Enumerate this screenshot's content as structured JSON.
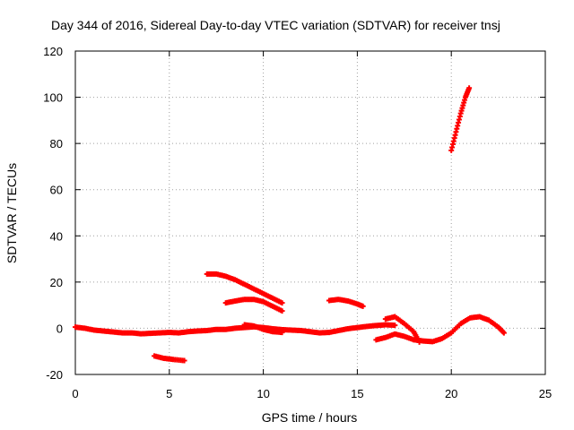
{
  "chart_data": {
    "type": "scatter",
    "title": "Day 344 of 2016, Sidereal Day-to-day VTEC variation (SDTVAR) for receiver tnsj",
    "xlabel": "GPS time / hours",
    "ylabel": "SDTVAR / TECUs",
    "xlim": [
      0,
      25
    ],
    "ylim": [
      -20,
      120
    ],
    "xticks": [
      0,
      5,
      10,
      15,
      20,
      25
    ],
    "yticks": [
      -20,
      0,
      20,
      40,
      60,
      80,
      100,
      120
    ],
    "grid": true,
    "marker": "plus",
    "color": "#ff0000",
    "series": [
      {
        "values": [
          [
            0.0,
            0.5
          ],
          [
            0.5,
            0.0
          ],
          [
            1.0,
            -0.8
          ],
          [
            1.5,
            -1.2
          ],
          [
            2.0,
            -1.6
          ],
          [
            2.5,
            -2.0
          ],
          [
            3.0,
            -2.0
          ],
          [
            3.5,
            -2.4
          ],
          [
            4.0,
            -2.2
          ],
          [
            4.5,
            -2.0
          ],
          [
            5.0,
            -1.8
          ],
          [
            5.5,
            -2.0
          ],
          [
            6.0,
            -1.5
          ],
          [
            6.5,
            -1.2
          ],
          [
            7.0,
            -1.0
          ],
          [
            7.5,
            -0.5
          ],
          [
            8.0,
            -0.5
          ],
          [
            8.5,
            0.0
          ],
          [
            9.0,
            0.3
          ],
          [
            9.5,
            0.6
          ],
          [
            10.0,
            0.3
          ],
          [
            10.5,
            -0.2
          ],
          [
            11.0,
            -0.6
          ],
          [
            11.5,
            -0.8
          ],
          [
            12.0,
            -1.0
          ],
          [
            12.5,
            -1.5
          ],
          [
            13.0,
            -2.0
          ],
          [
            13.5,
            -1.8
          ],
          [
            14.0,
            -1.0
          ],
          [
            14.5,
            -0.2
          ],
          [
            15.0,
            0.3
          ],
          [
            15.5,
            0.8
          ],
          [
            16.0,
            1.2
          ],
          [
            16.5,
            1.5
          ],
          [
            17.0,
            1.3
          ]
        ]
      },
      {
        "values": [
          [
            9.0,
            1.5
          ],
          [
            9.5,
            1.0
          ],
          [
            10.0,
            -0.5
          ],
          [
            10.5,
            -1.5
          ],
          [
            11.0,
            -1.8
          ]
        ]
      },
      {
        "values": [
          [
            16.0,
            -5.0
          ],
          [
            16.5,
            -4.0
          ],
          [
            17.0,
            -2.5
          ],
          [
            17.5,
            -3.5
          ],
          [
            18.0,
            -5.0
          ],
          [
            18.5,
            -5.5
          ],
          [
            19.0,
            -5.8
          ],
          [
            19.5,
            -4.5
          ],
          [
            20.0,
            -2.0
          ],
          [
            20.5,
            2.0
          ],
          [
            21.0,
            4.5
          ],
          [
            21.5,
            5.0
          ],
          [
            22.0,
            3.5
          ],
          [
            22.5,
            0.5
          ],
          [
            22.8,
            -2.0
          ]
        ]
      },
      {
        "values": [
          [
            16.5,
            4.0
          ],
          [
            17.0,
            5.0
          ],
          [
            17.5,
            2.0
          ],
          [
            18.0,
            -1.5
          ],
          [
            18.3,
            -6.0
          ]
        ]
      },
      {
        "values": [
          [
            4.2,
            -12.0
          ],
          [
            4.7,
            -13.0
          ],
          [
            5.2,
            -13.5
          ],
          [
            5.8,
            -14.0
          ]
        ]
      },
      {
        "values": [
          [
            7.0,
            23.5
          ],
          [
            7.5,
            23.5
          ],
          [
            8.0,
            22.5
          ],
          [
            8.5,
            21.0
          ],
          [
            9.0,
            19.0
          ],
          [
            9.5,
            17.0
          ],
          [
            10.0,
            15.0
          ],
          [
            10.5,
            13.0
          ],
          [
            11.0,
            11.0
          ]
        ]
      },
      {
        "values": [
          [
            8.0,
            11.0
          ],
          [
            8.5,
            11.8
          ],
          [
            9.0,
            12.5
          ],
          [
            9.5,
            12.5
          ],
          [
            10.0,
            11.5
          ],
          [
            10.5,
            9.5
          ],
          [
            11.0,
            7.5
          ]
        ]
      },
      {
        "values": [
          [
            13.5,
            12.0
          ],
          [
            14.0,
            12.5
          ],
          [
            14.5,
            11.8
          ],
          [
            15.0,
            10.5
          ],
          [
            15.3,
            9.5
          ]
        ]
      },
      {
        "values": [
          [
            20.0,
            77.0
          ],
          [
            20.25,
            85.0
          ],
          [
            20.5,
            93.0
          ],
          [
            20.75,
            100.0
          ],
          [
            20.95,
            104.0
          ]
        ]
      }
    ]
  }
}
